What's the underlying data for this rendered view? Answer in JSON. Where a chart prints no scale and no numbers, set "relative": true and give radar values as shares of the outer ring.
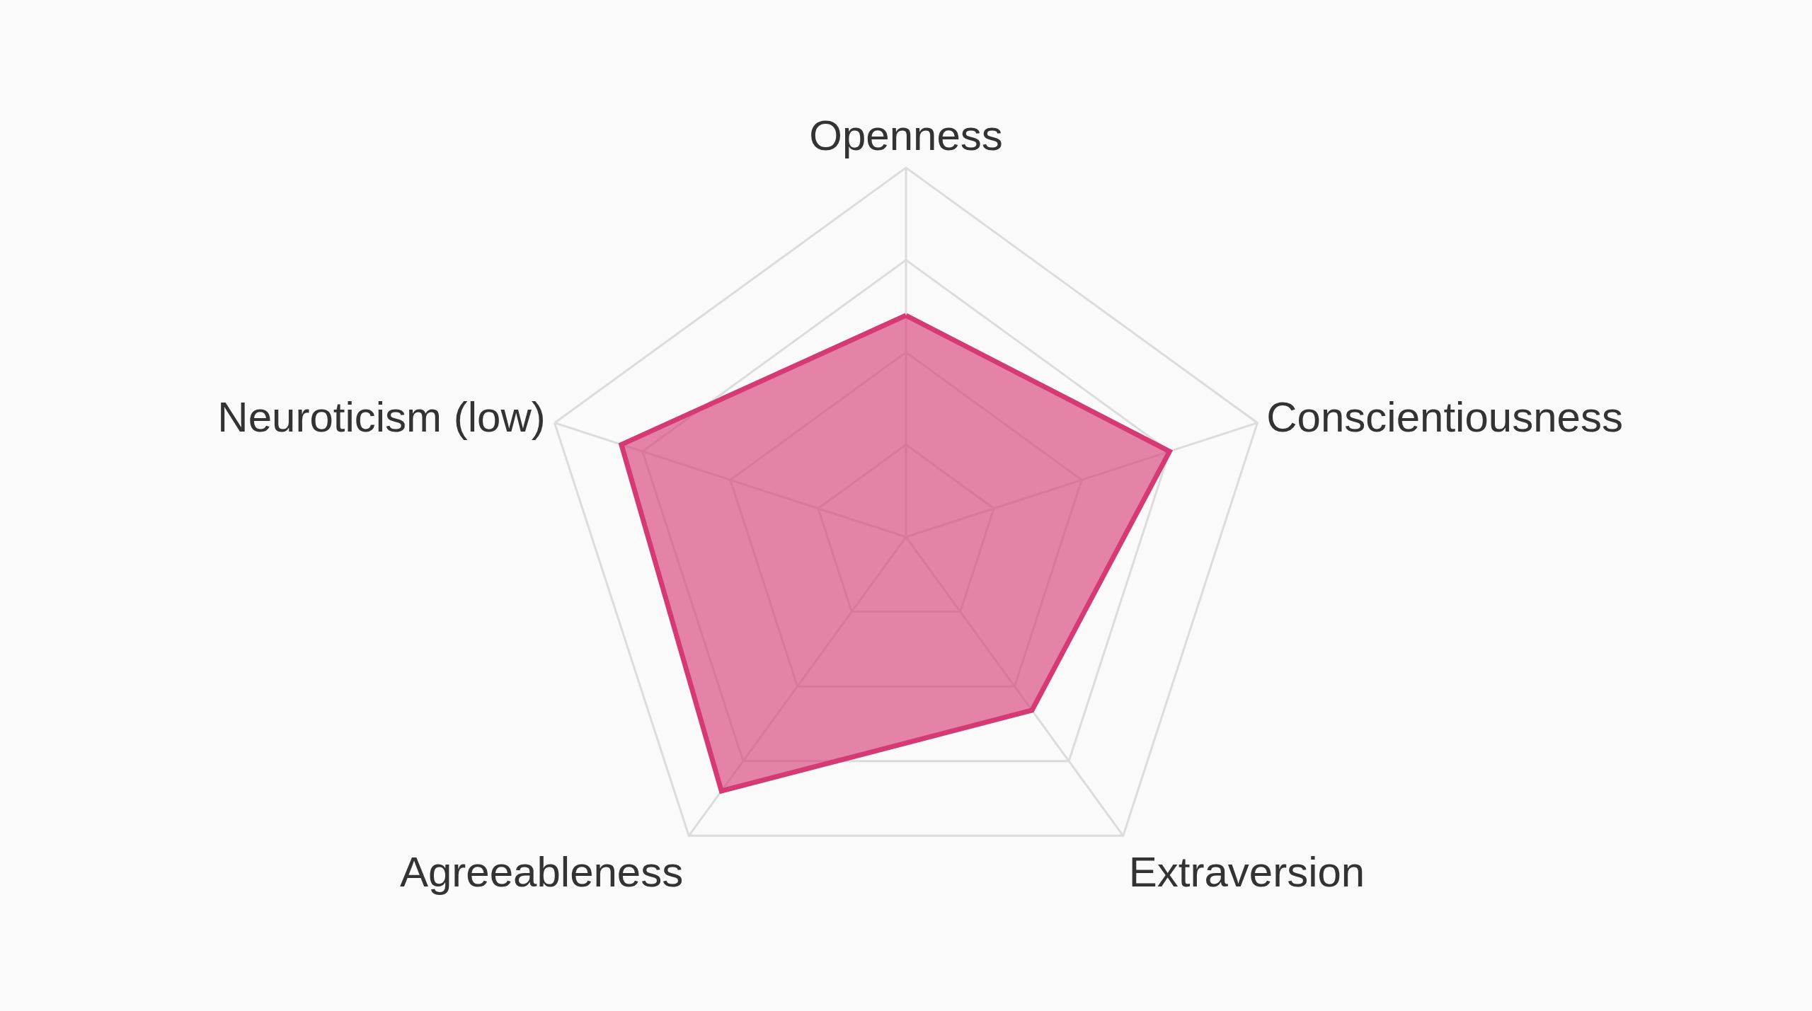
{
  "chart_data": {
    "type": "radar",
    "categories": [
      "Openness",
      "Conscientiousness",
      "Extraversion",
      "Agreeableness",
      "Neuroticism (low)"
    ],
    "series": [
      {
        "color": "#d63a74",
        "values": [
          0.6,
          0.75,
          0.58,
          0.85,
          0.81
        ]
      }
    ],
    "relative": true,
    "grid": true
  }
}
